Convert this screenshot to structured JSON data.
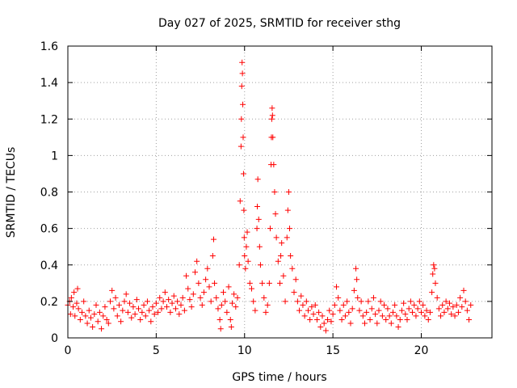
{
  "chart_data": {
    "type": "scatter",
    "title": "Day 027 of 2025, SRMTID for receiver sthg",
    "xlabel": "GPS time / hours",
    "ylabel": "SRMTID / TECUs",
    "xlim": [
      0,
      24
    ],
    "ylim": [
      0,
      1.6
    ],
    "xticks": [
      0,
      5,
      10,
      15,
      20
    ],
    "xtick_labels": [
      "0",
      "5",
      "10",
      "15",
      "20"
    ],
    "yticks": [
      0,
      0.2,
      0.4,
      0.6,
      0.8,
      1.0,
      1.2,
      1.4,
      1.6
    ],
    "ytick_labels": [
      "0",
      "0.2",
      "0.4",
      "0.6",
      "0.8",
      "1",
      "1.2",
      "1.4",
      "1.6"
    ],
    "grid": true,
    "marker": "plus",
    "color": "#ff0000",
    "series": [
      {
        "name": "SRMTID",
        "points": [
          [
            0.0,
            0.18
          ],
          [
            0.1,
            0.2
          ],
          [
            0.15,
            0.13
          ],
          [
            0.2,
            0.22
          ],
          [
            0.3,
            0.17
          ],
          [
            0.35,
            0.25
          ],
          [
            0.4,
            0.12
          ],
          [
            0.5,
            0.19
          ],
          [
            0.55,
            0.27
          ],
          [
            0.6,
            0.16
          ],
          [
            0.7,
            0.1
          ],
          [
            0.8,
            0.14
          ],
          [
            0.9,
            0.2
          ],
          [
            1.0,
            0.12
          ],
          [
            1.1,
            0.08
          ],
          [
            1.2,
            0.15
          ],
          [
            1.3,
            0.11
          ],
          [
            1.4,
            0.06
          ],
          [
            1.5,
            0.13
          ],
          [
            1.6,
            0.18
          ],
          [
            1.7,
            0.09
          ],
          [
            1.8,
            0.14
          ],
          [
            1.9,
            0.05
          ],
          [
            2.0,
            0.12
          ],
          [
            2.1,
            0.17
          ],
          [
            2.2,
            0.1
          ],
          [
            2.3,
            0.08
          ],
          [
            2.4,
            0.2
          ],
          [
            2.5,
            0.26
          ],
          [
            2.6,
            0.16
          ],
          [
            2.7,
            0.22
          ],
          [
            2.8,
            0.12
          ],
          [
            2.9,
            0.18
          ],
          [
            3.0,
            0.09
          ],
          [
            3.1,
            0.15
          ],
          [
            3.2,
            0.2
          ],
          [
            3.3,
            0.24
          ],
          [
            3.4,
            0.14
          ],
          [
            3.5,
            0.19
          ],
          [
            3.6,
            0.11
          ],
          [
            3.7,
            0.17
          ],
          [
            3.8,
            0.13
          ],
          [
            3.9,
            0.21
          ],
          [
            4.0,
            0.16
          ],
          [
            4.1,
            0.1
          ],
          [
            4.2,
            0.14
          ],
          [
            4.3,
            0.18
          ],
          [
            4.4,
            0.12
          ],
          [
            4.5,
            0.2
          ],
          [
            4.6,
            0.15
          ],
          [
            4.7,
            0.09
          ],
          [
            4.8,
            0.17
          ],
          [
            4.9,
            0.13
          ],
          [
            5.0,
            0.19
          ],
          [
            5.1,
            0.14
          ],
          [
            5.2,
            0.22
          ],
          [
            5.3,
            0.16
          ],
          [
            5.4,
            0.2
          ],
          [
            5.5,
            0.25
          ],
          [
            5.6,
            0.17
          ],
          [
            5.7,
            0.21
          ],
          [
            5.8,
            0.14
          ],
          [
            5.9,
            0.19
          ],
          [
            6.0,
            0.23
          ],
          [
            6.1,
            0.16
          ],
          [
            6.2,
            0.2
          ],
          [
            6.3,
            0.13
          ],
          [
            6.4,
            0.18
          ],
          [
            6.5,
            0.22
          ],
          [
            6.6,
            0.15
          ],
          [
            6.7,
            0.34
          ],
          [
            6.8,
            0.27
          ],
          [
            6.9,
            0.21
          ],
          [
            7.0,
            0.17
          ],
          [
            7.1,
            0.24
          ],
          [
            7.2,
            0.36
          ],
          [
            7.3,
            0.42
          ],
          [
            7.4,
            0.3
          ],
          [
            7.5,
            0.22
          ],
          [
            7.6,
            0.18
          ],
          [
            7.7,
            0.25
          ],
          [
            7.8,
            0.32
          ],
          [
            7.9,
            0.38
          ],
          [
            8.0,
            0.28
          ],
          [
            8.1,
            0.2
          ],
          [
            8.2,
            0.45
          ],
          [
            8.25,
            0.54
          ],
          [
            8.3,
            0.3
          ],
          [
            8.4,
            0.22
          ],
          [
            8.5,
            0.16
          ],
          [
            8.6,
            0.1
          ],
          [
            8.65,
            0.05
          ],
          [
            8.7,
            0.18
          ],
          [
            8.8,
            0.25
          ],
          [
            8.9,
            0.2
          ],
          [
            9.0,
            0.14
          ],
          [
            9.1,
            0.28
          ],
          [
            9.2,
            0.1
          ],
          [
            9.25,
            0.06
          ],
          [
            9.3,
            0.19
          ],
          [
            9.4,
            0.24
          ],
          [
            9.5,
            0.17
          ],
          [
            9.6,
            0.22
          ],
          [
            9.7,
            0.4
          ],
          [
            9.75,
            0.75
          ],
          [
            9.8,
            1.05
          ],
          [
            9.82,
            1.2
          ],
          [
            9.84,
            1.38
          ],
          [
            9.86,
            1.51
          ],
          [
            9.88,
            1.45
          ],
          [
            9.9,
            1.28
          ],
          [
            9.92,
            1.1
          ],
          [
            9.94,
            0.9
          ],
          [
            9.96,
            0.7
          ],
          [
            9.98,
            0.55
          ],
          [
            10.0,
            0.45
          ],
          [
            10.05,
            0.38
          ],
          [
            10.1,
            0.5
          ],
          [
            10.15,
            0.58
          ],
          [
            10.2,
            0.42
          ],
          [
            10.3,
            0.3
          ],
          [
            10.4,
            0.27
          ],
          [
            10.5,
            0.2
          ],
          [
            10.6,
            0.15
          ],
          [
            10.7,
            0.6
          ],
          [
            10.72,
            0.72
          ],
          [
            10.75,
            0.87
          ],
          [
            10.8,
            0.65
          ],
          [
            10.85,
            0.5
          ],
          [
            10.9,
            0.4
          ],
          [
            11.0,
            0.3
          ],
          [
            11.1,
            0.22
          ],
          [
            11.2,
            0.14
          ],
          [
            11.3,
            0.18
          ],
          [
            11.4,
            0.3
          ],
          [
            11.45,
            0.6
          ],
          [
            11.5,
            0.95
          ],
          [
            11.52,
            1.1
          ],
          [
            11.54,
            1.2
          ],
          [
            11.56,
            1.26
          ],
          [
            11.58,
            1.22
          ],
          [
            11.6,
            1.1
          ],
          [
            11.65,
            0.95
          ],
          [
            11.7,
            0.8
          ],
          [
            11.75,
            0.68
          ],
          [
            11.8,
            0.55
          ],
          [
            11.9,
            0.42
          ],
          [
            12.0,
            0.3
          ],
          [
            12.05,
            0.45
          ],
          [
            12.1,
            0.52
          ],
          [
            12.2,
            0.34
          ],
          [
            12.3,
            0.2
          ],
          [
            12.4,
            0.55
          ],
          [
            12.45,
            0.7
          ],
          [
            12.5,
            0.8
          ],
          [
            12.55,
            0.6
          ],
          [
            12.6,
            0.45
          ],
          [
            12.7,
            0.38
          ],
          [
            12.8,
            0.25
          ],
          [
            12.9,
            0.32
          ],
          [
            13.0,
            0.2
          ],
          [
            13.1,
            0.15
          ],
          [
            13.2,
            0.23
          ],
          [
            13.3,
            0.18
          ],
          [
            13.4,
            0.12
          ],
          [
            13.5,
            0.2
          ],
          [
            13.6,
            0.15
          ],
          [
            13.7,
            0.1
          ],
          [
            13.8,
            0.17
          ],
          [
            13.9,
            0.13
          ],
          [
            14.0,
            0.18
          ],
          [
            14.1,
            0.1
          ],
          [
            14.2,
            0.14
          ],
          [
            14.3,
            0.06
          ],
          [
            14.4,
            0.12
          ],
          [
            14.5,
            0.08
          ],
          [
            14.6,
            0.04
          ],
          [
            14.7,
            0.1
          ],
          [
            14.8,
            0.15
          ],
          [
            14.9,
            0.09
          ],
          [
            15.0,
            0.13
          ],
          [
            15.1,
            0.18
          ],
          [
            15.2,
            0.28
          ],
          [
            15.3,
            0.22
          ],
          [
            15.4,
            0.15
          ],
          [
            15.5,
            0.1
          ],
          [
            15.6,
            0.18
          ],
          [
            15.7,
            0.12
          ],
          [
            15.8,
            0.2
          ],
          [
            15.9,
            0.14
          ],
          [
            16.0,
            0.08
          ],
          [
            16.1,
            0.16
          ],
          [
            16.2,
            0.26
          ],
          [
            16.3,
            0.38
          ],
          [
            16.35,
            0.32
          ],
          [
            16.4,
            0.22
          ],
          [
            16.5,
            0.15
          ],
          [
            16.6,
            0.2
          ],
          [
            16.7,
            0.12
          ],
          [
            16.8,
            0.08
          ],
          [
            16.9,
            0.14
          ],
          [
            17.0,
            0.2
          ],
          [
            17.1,
            0.1
          ],
          [
            17.2,
            0.16
          ],
          [
            17.3,
            0.22
          ],
          [
            17.4,
            0.13
          ],
          [
            17.5,
            0.08
          ],
          [
            17.6,
            0.15
          ],
          [
            17.7,
            0.2
          ],
          [
            17.8,
            0.12
          ],
          [
            17.9,
            0.18
          ],
          [
            18.0,
            0.1
          ],
          [
            18.1,
            0.16
          ],
          [
            18.2,
            0.12
          ],
          [
            18.3,
            0.08
          ],
          [
            18.4,
            0.14
          ],
          [
            18.5,
            0.18
          ],
          [
            18.6,
            0.12
          ],
          [
            18.7,
            0.06
          ],
          [
            18.8,
            0.1
          ],
          [
            18.9,
            0.15
          ],
          [
            19.0,
            0.19
          ],
          [
            19.1,
            0.13
          ],
          [
            19.2,
            0.1
          ],
          [
            19.3,
            0.16
          ],
          [
            19.4,
            0.2
          ],
          [
            19.5,
            0.14
          ],
          [
            19.6,
            0.18
          ],
          [
            19.7,
            0.12
          ],
          [
            19.8,
            0.16
          ],
          [
            19.9,
            0.2
          ],
          [
            20.0,
            0.14
          ],
          [
            20.1,
            0.18
          ],
          [
            20.2,
            0.12
          ],
          [
            20.3,
            0.15
          ],
          [
            20.4,
            0.1
          ],
          [
            20.5,
            0.14
          ],
          [
            20.6,
            0.25
          ],
          [
            20.65,
            0.35
          ],
          [
            20.7,
            0.4
          ],
          [
            20.75,
            0.38
          ],
          [
            20.8,
            0.3
          ],
          [
            20.9,
            0.22
          ],
          [
            21.0,
            0.16
          ],
          [
            21.1,
            0.12
          ],
          [
            21.2,
            0.18
          ],
          [
            21.3,
            0.14
          ],
          [
            21.4,
            0.2
          ],
          [
            21.5,
            0.16
          ],
          [
            21.6,
            0.19
          ],
          [
            21.7,
            0.13
          ],
          [
            21.8,
            0.17
          ],
          [
            21.9,
            0.12
          ],
          [
            22.0,
            0.18
          ],
          [
            22.1,
            0.14
          ],
          [
            22.2,
            0.22
          ],
          [
            22.3,
            0.17
          ],
          [
            22.4,
            0.26
          ],
          [
            22.5,
            0.2
          ],
          [
            22.6,
            0.15
          ],
          [
            22.7,
            0.1
          ],
          [
            22.8,
            0.18
          ]
        ]
      }
    ]
  }
}
